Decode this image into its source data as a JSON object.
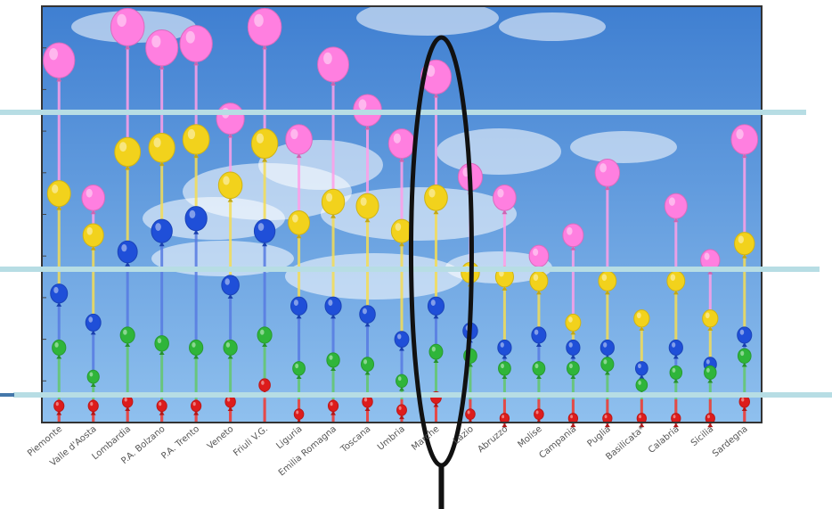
{
  "colors": {
    "sky_top": "#3f7fd1",
    "sky_bottom": "#8fc0ee",
    "frame": "#333333",
    "band_line": "#b7dde4",
    "pink": "#ff7fe0",
    "yellow": "#f2d21c",
    "blue": "#1f4fd8",
    "green": "#2fb53a",
    "red": "#dd1c1c",
    "marker": "#111111"
  },
  "chart_data": {
    "type": "scatter",
    "title": "",
    "xlabel": "",
    "ylabel": "",
    "ylim": [
      0,
      10
    ],
    "categories": [
      "Piemonte",
      "Valle d'Aosta",
      "Lombardia",
      "P.A. Bolzano",
      "P.A. Trento",
      "Veneto",
      "Friuli V.G.",
      "Liguria",
      "Emilia Romagna",
      "Toscana",
      "Umbria",
      "Marche",
      "Lazio",
      "Abruzzo",
      "Molise",
      "Campania",
      "Puglia",
      "Basilicata*",
      "Calabria",
      "Sicilia",
      "Sardegna"
    ],
    "series": [
      {
        "color": "pink",
        "values": [
          8.7,
          5.4,
          9.5,
          9.0,
          9.1,
          7.3,
          9.5,
          6.8,
          8.6,
          7.5,
          6.7,
          8.3,
          5.9,
          5.4,
          4.0,
          4.5,
          6.0,
          null,
          5.2,
          3.9,
          6.8
        ]
      },
      {
        "color": "yellow",
        "values": [
          5.5,
          4.5,
          6.5,
          6.6,
          6.8,
          5.7,
          6.7,
          4.8,
          5.3,
          5.2,
          4.6,
          5.4,
          3.6,
          3.5,
          3.4,
          2.4,
          3.4,
          2.5,
          3.4,
          2.5,
          4.3
        ]
      },
      {
        "color": "blue",
        "values": [
          3.1,
          2.4,
          4.1,
          4.6,
          4.9,
          3.3,
          4.6,
          2.8,
          2.8,
          2.6,
          2.0,
          2.8,
          2.2,
          1.8,
          2.1,
          1.8,
          1.8,
          1.3,
          1.8,
          1.4,
          2.1
        ]
      },
      {
        "color": "green",
        "values": [
          1.8,
          1.1,
          2.1,
          1.9,
          1.8,
          1.8,
          2.1,
          1.3,
          1.5,
          1.4,
          1.0,
          1.7,
          1.6,
          1.3,
          1.3,
          1.3,
          1.4,
          0.9,
          1.2,
          1.2,
          1.6
        ]
      },
      {
        "color": "red",
        "values": [
          0.4,
          0.4,
          0.5,
          0.4,
          0.4,
          0.5,
          0.9,
          0.2,
          0.4,
          0.5,
          0.3,
          0.6,
          0.2,
          0.1,
          0.2,
          0.1,
          0.1,
          0.1,
          0.1,
          0.1,
          0.5
        ]
      }
    ],
    "reference_bands": 3,
    "highlighted_category": "Marche"
  }
}
